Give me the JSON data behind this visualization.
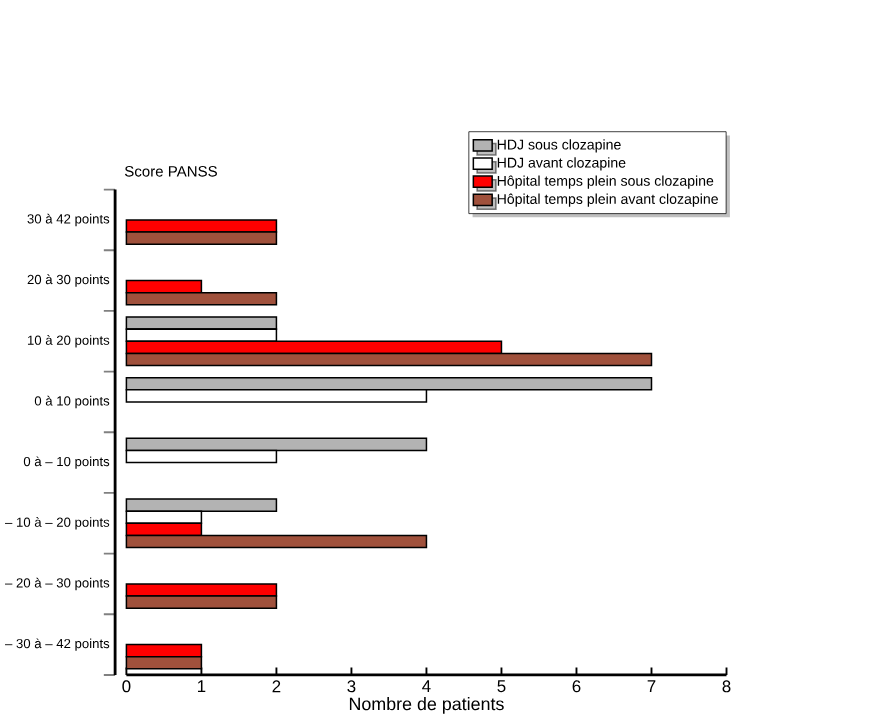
{
  "chart_data": {
    "type": "bar",
    "orientation": "horizontal",
    "ylabel": "Score PANSS",
    "xlabel": "Nombre de patients",
    "categories": [
      "30 à 42 points",
      "20 à 30 points",
      "10 à 20 points",
      "0 à 10 points",
      "0 à – 10 points",
      "– 10 à – 20 points",
      "– 20 à – 30 points",
      "– 30 à – 42 points"
    ],
    "series": [
      {
        "name": "HDJ sous clozapine",
        "color": "#b3b3b3",
        "values": [
          null,
          null,
          2,
          7,
          4,
          2,
          null,
          null
        ]
      },
      {
        "name": "HDJ avant clozapine",
        "color": "#ffffff",
        "values": [
          null,
          null,
          2,
          4,
          2,
          1,
          null,
          null
        ]
      },
      {
        "name": "Hôpital temps plein sous clozapine",
        "color": "#ff0000",
        "values": [
          2,
          1,
          5,
          null,
          null,
          1,
          2,
          1
        ]
      },
      {
        "name": "Hôpital temps plein avant clozapine",
        "color": "#a0513c",
        "values": [
          2,
          2,
          7,
          null,
          null,
          4,
          2,
          1
        ]
      }
    ],
    "xlim": [
      0,
      8
    ],
    "xticks": [
      0,
      1,
      2,
      3,
      4,
      5,
      6,
      7,
      8
    ],
    "legend": "top right"
  }
}
